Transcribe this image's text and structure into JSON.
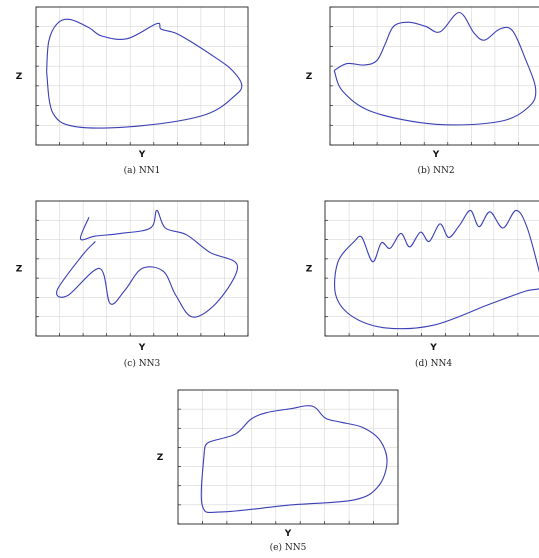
{
  "chart_data": [
    {
      "type": "line",
      "caption": "(a) NN1",
      "xlabel": "Y",
      "ylabel": "Z",
      "grid": true,
      "closed": true,
      "xlim": [
        0,
        10
      ],
      "ylim": [
        0,
        10
      ],
      "series": [
        {
          "color": "#3a3fb5",
          "x": [
            0.5,
            0.6,
            1.0,
            1.6,
            2.5,
            3.1,
            4.3,
            5.7,
            5.9,
            6.6,
            7.4,
            8.4,
            9.2,
            9.7,
            9.4,
            8.0,
            5.0,
            2.0,
            0.8,
            0.5
          ],
          "y": [
            5.3,
            7.5,
            8.8,
            9.1,
            8.5,
            7.9,
            7.7,
            8.8,
            8.4,
            8.1,
            7.4,
            6.4,
            5.5,
            4.4,
            3.6,
            2.2,
            1.4,
            1.3,
            2.3,
            5.3
          ]
        }
      ]
    },
    {
      "type": "line",
      "caption": "(b) NN2",
      "xlabel": "Y",
      "ylabel": "Z",
      "grid": true,
      "closed": true,
      "xlim": [
        0,
        10
      ],
      "ylim": [
        0,
        10
      ],
      "series": [
        {
          "color": "#3a3fb5",
          "x": [
            0.2,
            0.8,
            1.6,
            2.2,
            2.6,
            3.0,
            3.7,
            4.5,
            5.2,
            6.1,
            6.8,
            7.3,
            8.0,
            8.6,
            9.2,
            9.7,
            9.4,
            8.0,
            5.0,
            2.0,
            0.6,
            0.2
          ],
          "y": [
            5.4,
            5.9,
            5.8,
            6.1,
            7.3,
            8.6,
            8.9,
            8.6,
            8.2,
            9.6,
            8.1,
            7.6,
            8.4,
            8.3,
            6.3,
            4.1,
            2.8,
            1.7,
            1.5,
            2.4,
            3.9,
            5.4
          ]
        }
      ]
    },
    {
      "type": "line",
      "caption": "(c) NN3",
      "xlabel": "Y",
      "ylabel": "Z",
      "grid": true,
      "closed": false,
      "xlim": [
        0,
        10
      ],
      "ylim": [
        0,
        10
      ],
      "series": [
        {
          "color": "#3a3fb5",
          "x": [
            2.5,
            2.1,
            2.8,
            4.0,
            5.4,
            5.7,
            6.1,
            7.1,
            8.2,
            9.5,
            8.6,
            7.4,
            6.6,
            6.0,
            5.0,
            4.2,
            3.5,
            3.0,
            1.5,
            1.0,
            2.2,
            2.8
          ],
          "y": [
            8.8,
            7.2,
            7.4,
            7.6,
            8.0,
            9.3,
            8.0,
            7.5,
            6.2,
            5.2,
            2.6,
            1.4,
            3.0,
            4.8,
            5.0,
            3.4,
            2.4,
            5.0,
            3.0,
            3.4,
            6.0,
            7.0
          ]
        }
      ]
    },
    {
      "type": "line",
      "caption": "(d) NN4",
      "xlabel": "Y",
      "ylabel": "Z",
      "grid": true,
      "closed": false,
      "xlim": [
        0,
        10
      ],
      "ylim": [
        0,
        10
      ],
      "series": [
        {
          "color": "#3a3fb5",
          "x": [
            1.4,
            0.6,
            0.5,
            1.3,
            2.8,
            5.0,
            7.5,
            9.2,
            10.0,
            9.9,
            9.3,
            8.8,
            8.2,
            7.6,
            7.1,
            6.7,
            6.2,
            5.7,
            5.3,
            4.8,
            4.4,
            3.9,
            3.5,
            3.0,
            2.6,
            2.2,
            1.7,
            1.4
          ],
          "y": [
            7.1,
            5.5,
            3.0,
            1.4,
            0.6,
            0.8,
            2.3,
            3.3,
            3.6,
            4.6,
            8.1,
            9.3,
            8.0,
            9.2,
            8.1,
            9.3,
            8.2,
            7.3,
            8.3,
            7.0,
            7.7,
            6.6,
            7.6,
            6.5,
            6.9,
            5.5,
            7.3,
            7.1
          ]
        }
      ]
    },
    {
      "type": "line",
      "caption": "(e) NN5",
      "xlabel": "Y",
      "ylabel": "Z",
      "grid": true,
      "closed": true,
      "xlim": [
        0,
        10
      ],
      "ylim": [
        0,
        10
      ],
      "series": [
        {
          "color": "#3a3fb5",
          "x": [
            1.2,
            1.4,
            2.6,
            3.3,
            4.0,
            5.1,
            6.1,
            6.7,
            7.4,
            8.4,
            9.2,
            9.5,
            9.1,
            8.0,
            5.0,
            2.0,
            1.1,
            1.2
          ],
          "y": [
            5.5,
            6.1,
            6.7,
            7.8,
            8.3,
            8.6,
            8.8,
            7.9,
            7.6,
            7.2,
            6.2,
            4.6,
            2.8,
            1.8,
            1.4,
            0.9,
            1.4,
            5.5
          ]
        }
      ]
    }
  ]
}
